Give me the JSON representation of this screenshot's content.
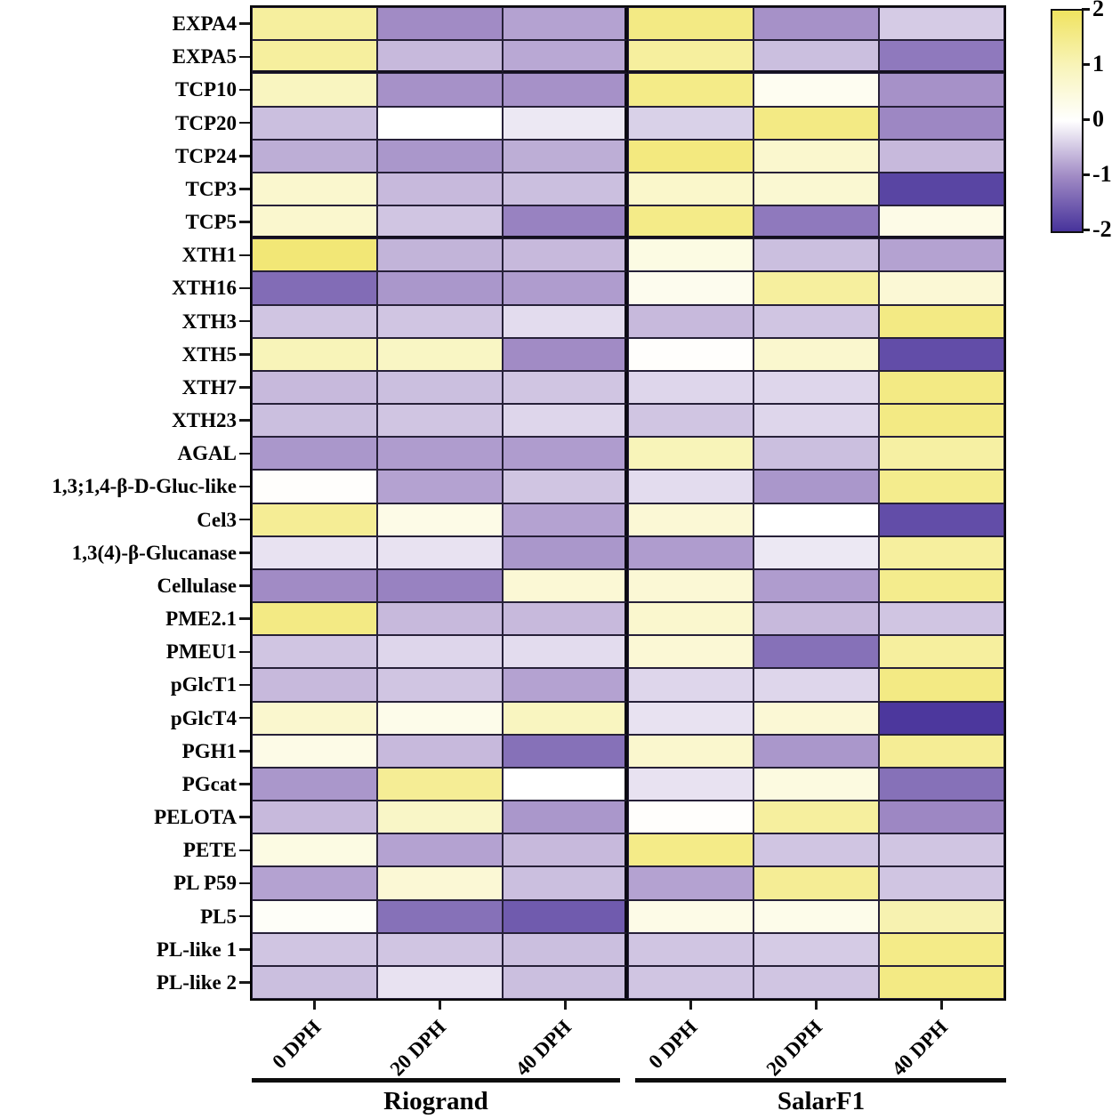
{
  "chart_data": {
    "type": "heatmap",
    "title": "",
    "rows": [
      "EXPA4",
      "EXPA5",
      "TCP10",
      "TCP20",
      "TCP24",
      "TCP3",
      "TCP5",
      "XTH1",
      "XTH16",
      "XTH3",
      "XTH5",
      "XTH7",
      "XTH23",
      "AGAL",
      "1,3;1,4-β-D-Gluc-like",
      "Cel3",
      "1,3(4)-β-Glucanase",
      "Cellulase",
      "PME2.1",
      "PMEU1",
      "pGlcT1",
      "pGlcT4",
      "PGH1",
      "PGcat",
      "PELOTA",
      "PETE",
      "PL P59",
      "PL5",
      "PL-like 1",
      "PL-like 2"
    ],
    "columns": [
      "0 DPH",
      "20 DPH",
      "40 DPH",
      "0 DPH",
      "20 DPH",
      "40 DPH"
    ],
    "column_groups": [
      {
        "label": "Riogrand",
        "columns": [
          "0 DPH",
          "20 DPH",
          "40 DPH"
        ]
      },
      {
        "label": "SalarF1",
        "columns": [
          "0 DPH",
          "20 DPH",
          "40 DPH"
        ]
      }
    ],
    "values": [
      [
        1.3,
        -1.0,
        -0.8,
        1.6,
        -0.95,
        -0.45
      ],
      [
        1.3,
        -0.6,
        -0.75,
        1.3,
        -0.55,
        -1.2
      ],
      [
        0.9,
        -0.95,
        -0.95,
        1.55,
        0.2,
        -0.95
      ],
      [
        -0.55,
        0.0,
        -0.2,
        -0.4,
        1.6,
        -1.05
      ],
      [
        -0.7,
        -0.9,
        -0.7,
        1.65,
        0.7,
        -0.6
      ],
      [
        0.7,
        -0.6,
        -0.55,
        0.75,
        0.65,
        -1.8
      ],
      [
        0.7,
        -0.5,
        -1.1,
        1.55,
        -1.2,
        0.35
      ],
      [
        1.75,
        -0.65,
        -0.6,
        0.4,
        -0.55,
        -0.8
      ],
      [
        -1.35,
        -0.9,
        -0.85,
        0.25,
        1.3,
        0.6
      ],
      [
        -0.5,
        -0.5,
        -0.3,
        -0.6,
        -0.5,
        1.6
      ],
      [
        1.0,
        0.85,
        -1.0,
        0.05,
        0.7,
        -1.7
      ],
      [
        -0.6,
        -0.55,
        -0.5,
        -0.35,
        -0.35,
        1.6
      ],
      [
        -0.55,
        -0.5,
        -0.35,
        -0.5,
        -0.35,
        1.6
      ],
      [
        -0.9,
        -0.85,
        -0.85,
        1.0,
        -0.55,
        1.25
      ],
      [
        0.05,
        -0.8,
        -0.5,
        -0.3,
        -0.9,
        1.5
      ],
      [
        1.4,
        0.35,
        -0.8,
        0.6,
        0.0,
        -1.7
      ],
      [
        -0.25,
        -0.25,
        -0.9,
        -0.85,
        -0.2,
        1.3
      ],
      [
        -1.0,
        -1.1,
        0.6,
        0.6,
        -0.85,
        1.5
      ],
      [
        1.6,
        -0.6,
        -0.6,
        0.7,
        -0.6,
        -0.5
      ],
      [
        -0.5,
        -0.35,
        -0.3,
        0.6,
        -1.3,
        1.3
      ],
      [
        -0.6,
        -0.5,
        -0.8,
        -0.35,
        -0.35,
        1.6
      ],
      [
        0.7,
        0.3,
        0.9,
        -0.25,
        0.6,
        -1.95
      ],
      [
        0.35,
        -0.6,
        -1.3,
        0.7,
        -0.9,
        1.4
      ],
      [
        -0.9,
        1.4,
        0.0,
        -0.25,
        0.45,
        -1.3
      ],
      [
        -0.6,
        0.8,
        -0.9,
        0.05,
        1.3,
        -1.05
      ],
      [
        0.4,
        -0.8,
        -0.6,
        1.55,
        -0.5,
        -0.5
      ],
      [
        -0.8,
        0.6,
        -0.55,
        -0.8,
        1.4,
        -0.5
      ],
      [
        0.1,
        -1.3,
        -1.55,
        0.35,
        0.3,
        1.1
      ],
      [
        -0.5,
        -0.5,
        -0.55,
        -0.5,
        -0.45,
        1.55
      ],
      [
        -0.55,
        -0.25,
        -0.55,
        -0.5,
        -0.5,
        1.6
      ]
    ],
    "value_range": [
      -2,
      2
    ],
    "grid": true,
    "grid_color": "#262038",
    "legend_position": "top-right",
    "colorbar": {
      "tick_labels": [
        "2",
        "1",
        "0",
        "-1",
        "-2"
      ],
      "tick_values": [
        2,
        1,
        0,
        -1,
        -2
      ],
      "stops": [
        {
          "value": 2,
          "color": "#f0e360"
        },
        {
          "value": 1,
          "color": "#f8f4b9"
        },
        {
          "value": 0,
          "color": "#ffffff"
        },
        {
          "value": -1,
          "color": "#a18bc5"
        },
        {
          "value": -2,
          "color": "#47339b"
        }
      ]
    }
  }
}
